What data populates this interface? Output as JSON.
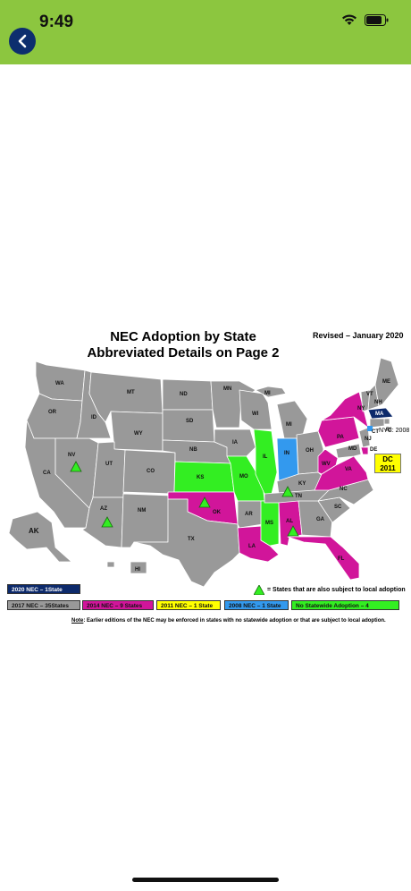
{
  "status_bar": {
    "time": "9:49"
  },
  "map": {
    "title_line1": "NEC Adoption by State",
    "title_line2": "Abbreviated Details on Page 2",
    "revised": "Revised – January 2020",
    "nyc_label": "NYC: 2008",
    "dc_label_line1": "DC",
    "dc_label_line2": "2011",
    "triangle_legend": "= States that are also subject to local adoption",
    "note_prefix": "Note",
    "note_text": ": Earlier editions of the NEC may be enforced in states with no statewide adoption or that are subject to local adoption.",
    "colors": {
      "nec2020": "#0d2a6b",
      "nec2017": "#999999",
      "nec2014": "#d1159a",
      "nec2011": "#ffff00",
      "nec2008": "#3399ee",
      "none": "#33ee22"
    },
    "legend": [
      {
        "label": "2020 NEC – 1State"
      },
      {
        "label": "2017 NEC – 35States"
      },
      {
        "label": "2014 NEC – 9 States"
      },
      {
        "label": "2011 NEC – 1 State"
      },
      {
        "label": "2008 NEC – 1 State"
      },
      {
        "label": "No Statewide Adoption – 4"
      }
    ],
    "state_labels": {
      "WA": "WA",
      "OR": "OR",
      "CA": "CA",
      "NV": "NV",
      "ID": "ID",
      "MT": "MT",
      "WY": "WY",
      "UT": "UT",
      "AZ": "AZ",
      "CO": "CO",
      "NM": "NM",
      "ND": "ND",
      "SD": "SD",
      "NE": "NB",
      "KS": "KS",
      "OK": "OK",
      "TX": "TX",
      "MN": "MN",
      "IA": "IA",
      "MO": "MO",
      "AR": "AR",
      "LA": "LA",
      "WI": "WI",
      "IL": "IL",
      "MS": "MS",
      "MI": "MI",
      "MI2": "MI",
      "IN": "IN",
      "OH": "OH",
      "KY": "KY",
      "TN": "TN",
      "AL": "AL",
      "GA": "GA",
      "FL": "FL",
      "SC": "SC",
      "NC": "NC",
      "VA": "VA",
      "WV": "WV",
      "PA": "PA",
      "NY": "NY",
      "VT": "VT",
      "NH": "NH",
      "ME": "ME",
      "MA": "MA",
      "RI": "RI",
      "CT": "CT",
      "NJ": "NJ",
      "DE": "DE",
      "MD": "MD",
      "AK": "AK",
      "HI": "HI"
    }
  }
}
